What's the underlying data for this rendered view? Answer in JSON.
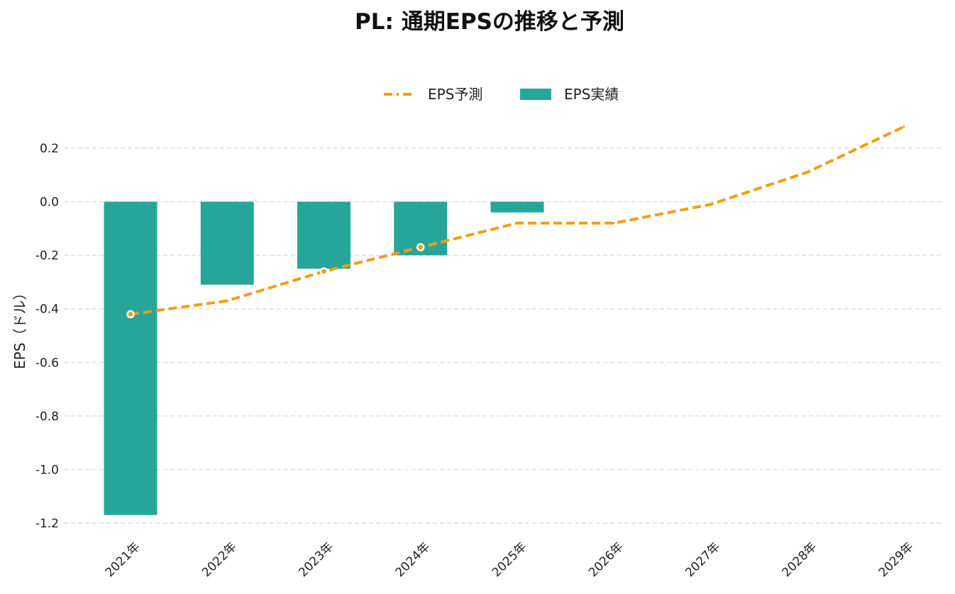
{
  "chart_data": {
    "type": "bar",
    "title": "PL: 通期EPSの推移と予測",
    "xlabel": "",
    "ylabel": "EPS（ドル）",
    "categories": [
      "2021年",
      "2022年",
      "2023年",
      "2024年",
      "2025年",
      "2026年",
      "2027年",
      "2028年",
      "2029年"
    ],
    "ylim": [
      -1.2,
      0.2
    ],
    "yticks": [
      -1.2,
      -1.0,
      -0.8,
      -0.6,
      -0.4,
      -0.2,
      0.0,
      0.2
    ],
    "ytick_labels": [
      "-1.2",
      "-1.0",
      "-0.8",
      "-0.6",
      "-0.4",
      "-0.2",
      "0.0",
      "0.2"
    ],
    "grid": true,
    "legend_position": "top-center",
    "series": [
      {
        "name": "EPS予測",
        "type": "line",
        "style": "dashed",
        "color": "#f39c12",
        "values": [
          -0.42,
          -0.37,
          -0.26,
          -0.17,
          -0.08,
          -0.08,
          -0.01,
          0.11,
          0.28
        ],
        "markers": [
          true,
          false,
          true,
          true,
          false,
          false,
          false,
          false,
          false
        ]
      },
      {
        "name": "EPS実績",
        "type": "bar",
        "color": "#26a69a",
        "values": [
          -1.17,
          -0.31,
          -0.25,
          -0.2,
          -0.04,
          null,
          null,
          null,
          null
        ]
      }
    ]
  }
}
